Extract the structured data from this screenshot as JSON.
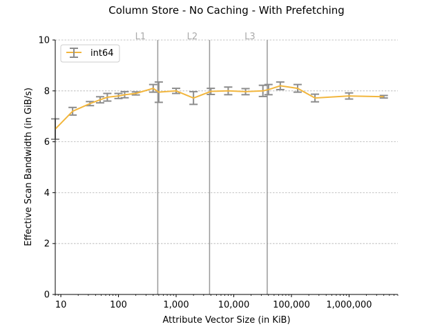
{
  "chart_data": {
    "type": "line",
    "title": "Column Store - No Caching - With Prefetching",
    "xlabel": "Attribute Vector Size (in KiB)",
    "ylabel": "Effective Scan Bandwidth (in GiB/s)",
    "xscale": "log",
    "xlim": [
      8,
      7000000
    ],
    "ylim": [
      0,
      10
    ],
    "x_ticks": [
      10,
      100,
      1000,
      10000,
      100000,
      1000000
    ],
    "x_tick_labels": [
      "10",
      "100",
      "1,000",
      "10,000",
      "100,000",
      "1,000,000"
    ],
    "y_ticks": [
      0,
      2,
      4,
      6,
      8,
      10
    ],
    "y_tick_labels": [
      "0",
      "2",
      "4",
      "6",
      "8",
      "10"
    ],
    "grid": "y",
    "legend_position": "top-left",
    "cache_lines": [
      {
        "label": "L1",
        "x": 480
      },
      {
        "label": "L2",
        "x": 3800
      },
      {
        "label": "L3",
        "x": 38000
      }
    ],
    "series": [
      {
        "name": "int64",
        "color": "#f2b63d",
        "errorbar_color": "#8c8c8c",
        "x": [
          8,
          16,
          32,
          48,
          64,
          100,
          128,
          200,
          400,
          500,
          1000,
          2000,
          4000,
          8000,
          16000,
          32000,
          40000,
          64000,
          128000,
          256000,
          1000000,
          4000000
        ],
        "y": [
          6.5,
          7.2,
          7.5,
          7.65,
          7.75,
          7.8,
          7.85,
          7.9,
          8.1,
          7.95,
          8.0,
          7.72,
          7.98,
          8.0,
          7.97,
          8.0,
          8.05,
          8.2,
          8.1,
          7.72,
          7.8,
          7.77
        ],
        "yerr": [
          0.4,
          0.15,
          0.08,
          0.12,
          0.15,
          0.1,
          0.12,
          0.06,
          0.15,
          0.4,
          0.1,
          0.25,
          0.12,
          0.15,
          0.12,
          0.22,
          0.2,
          0.15,
          0.15,
          0.15,
          0.12,
          0.05
        ]
      }
    ]
  }
}
